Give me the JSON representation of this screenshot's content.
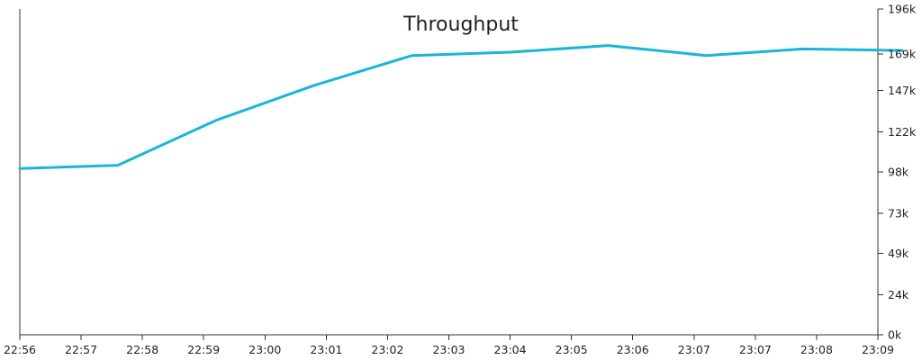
{
  "chart_data": {
    "type": "line",
    "title": "Throughput",
    "xlabel": "",
    "ylabel": "",
    "x": [
      "22:56",
      "22:57",
      "22:58",
      "22:59",
      "23:00",
      "23:01",
      "23:02",
      "23:03",
      "23:04",
      "23:05",
      "23:06",
      "23:07",
      "23:07",
      "23:08",
      "23:09"
    ],
    "x_tick_labels": [
      "22:56",
      "22:57",
      "22:58",
      "22:59",
      "23:00",
      "23:01",
      "23:02",
      "23:03",
      "23:04",
      "23:05",
      "23:06",
      "23:07",
      "23:07",
      "23:08",
      "23:09"
    ],
    "y_axis_side": "right",
    "ylim": [
      0,
      196000
    ],
    "y_tick_labels": [
      "0k",
      "24k",
      "49k",
      "73k",
      "98k",
      "122k",
      "147k",
      "169k",
      "196k"
    ],
    "y_tick_values": [
      0,
      24000,
      49000,
      73000,
      98000,
      122000,
      147000,
      169000,
      196000
    ],
    "grid": false,
    "legend": "none",
    "series": [
      {
        "color": "#1AB6D6",
        "points": [
          {
            "x": 0.0,
            "y": 100000
          },
          {
            "x": 1.6,
            "y": 102000
          },
          {
            "x": 3.2,
            "y": 129000
          },
          {
            "x": 4.8,
            "y": 150000
          },
          {
            "x": 6.4,
            "y": 168000
          },
          {
            "x": 8.0,
            "y": 170000
          },
          {
            "x": 9.6,
            "y": 174000
          },
          {
            "x": 11.2,
            "y": 168000
          },
          {
            "x": 12.8,
            "y": 172000
          },
          {
            "x": 14.4,
            "y": 171000
          }
        ]
      }
    ]
  }
}
